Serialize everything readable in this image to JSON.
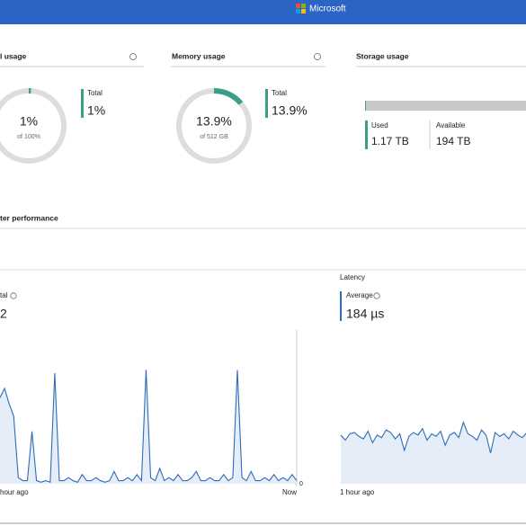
{
  "header": {
    "brand": "Microsoft"
  },
  "tiles": [
    {
      "title": "l usage",
      "gauge": {
        "value": 1,
        "label": "1%"
      },
      "gauge_sub": "of 100%",
      "total_label": "Total",
      "total_value": "1%"
    },
    {
      "title": "Memory usage",
      "gauge": {
        "value": 13.9,
        "label": "13.9%"
      },
      "gauge_sub": "of 512 GB",
      "total_label": "Total",
      "total_value": "13.9%"
    }
  ],
  "storage": {
    "title": "Storage usage",
    "used_label": "Used",
    "used": {
      "value": 1.17,
      "label": "1.17 TB"
    },
    "available_label": "Available",
    "available": {
      "value": 194,
      "label": "194 TB"
    }
  },
  "performance": {
    "title": "ter performance",
    "iops": {
      "stat_label": "tal",
      "stat_value": "2",
      "x_start": "hour ago",
      "x_end": "Now",
      "ylim": [
        0,
        50
      ],
      "yticks": [
        0
      ],
      "values": [
        28,
        31,
        26,
        22,
        2,
        1,
        1,
        17,
        1,
        0.5,
        1,
        0.5,
        36,
        1,
        1,
        2,
        1,
        0.5,
        3,
        1,
        1,
        2,
        1,
        0.5,
        1,
        4,
        1,
        1,
        2,
        1,
        3,
        1,
        37,
        2,
        1,
        5,
        1,
        2,
        1,
        3,
        1,
        1,
        2,
        4,
        1,
        1,
        2,
        1,
        1,
        3,
        1,
        2,
        37,
        2,
        1,
        4,
        1,
        1,
        2,
        1,
        3,
        1,
        2,
        1,
        3,
        1
      ]
    },
    "latency": {
      "title": "Latency",
      "stat_label": "Average",
      "stat_value": "184 µs",
      "x_start": "1 hour ago",
      "ylim": [
        0,
        600
      ],
      "values": [
        190,
        170,
        195,
        200,
        185,
        175,
        205,
        160,
        190,
        180,
        210,
        200,
        175,
        195,
        130,
        185,
        200,
        190,
        215,
        170,
        195,
        185,
        205,
        150,
        190,
        200,
        180,
        240,
        195,
        185,
        170,
        210,
        190,
        120,
        200,
        185,
        195,
        175,
        205,
        190,
        180,
        200
      ]
    }
  }
}
